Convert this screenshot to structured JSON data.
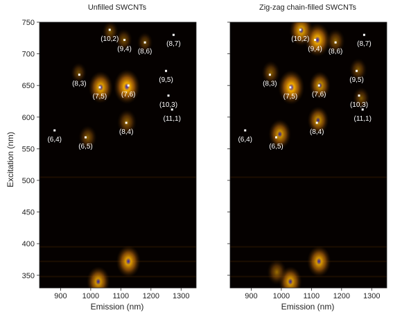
{
  "figure": {
    "ylabel": "Excitation (nm)"
  },
  "chart_data": [
    {
      "type": "heatmap",
      "title": "Unfilled SWCNTs",
      "xlabel": "Emission (nm)",
      "ylabel": "Excitation (nm)",
      "xlim": [
        830,
        1350
      ],
      "ylim": [
        330,
        750
      ],
      "x_ticks": [
        900,
        1000,
        1100,
        1200,
        1300
      ],
      "y_ticks": [
        350,
        400,
        450,
        500,
        550,
        600,
        650,
        700,
        750
      ],
      "show_y_tick_labels": true,
      "chiralities": [
        {
          "label": "(6,4)",
          "emission": 880,
          "excitation": 579
        },
        {
          "label": "(6,5)",
          "emission": 983,
          "excitation": 568
        },
        {
          "label": "(8,3)",
          "emission": 962,
          "excitation": 667
        },
        {
          "label": "(7,5)",
          "emission": 1030,
          "excitation": 647
        },
        {
          "label": "(10,2)",
          "emission": 1063,
          "excitation": 738
        },
        {
          "label": "(9,4)",
          "emission": 1112,
          "excitation": 722
        },
        {
          "label": "(7,6)",
          "emission": 1125,
          "excitation": 650
        },
        {
          "label": "(8,4)",
          "emission": 1118,
          "excitation": 591
        },
        {
          "label": "(8,6)",
          "emission": 1180,
          "excitation": 718
        },
        {
          "label": "(8,7)",
          "emission": 1275,
          "excitation": 730
        },
        {
          "label": "(9,5)",
          "emission": 1250,
          "excitation": 673
        },
        {
          "label": "(10,3)",
          "emission": 1258,
          "excitation": 634
        },
        {
          "label": "(11,1)",
          "emission": 1270,
          "excitation": 612
        }
      ],
      "peaks": [
        {
          "emission": 1120,
          "excitation": 648,
          "intensity": 1.0
        },
        {
          "emission": 1033,
          "excitation": 647,
          "intensity": 0.85
        },
        {
          "emission": 1125,
          "excitation": 372,
          "intensity": 0.85
        },
        {
          "emission": 1025,
          "excitation": 340,
          "intensity": 0.75
        },
        {
          "emission": 1120,
          "excitation": 592,
          "intensity": 0.45
        },
        {
          "emission": 990,
          "excitation": 568,
          "intensity": 0.35
        },
        {
          "emission": 1110,
          "excitation": 722,
          "intensity": 0.25
        },
        {
          "emission": 1065,
          "excitation": 735,
          "intensity": 0.2
        },
        {
          "emission": 960,
          "excitation": 670,
          "intensity": 0.15
        },
        {
          "emission": 1180,
          "excitation": 718,
          "intensity": 0.15
        }
      ]
    },
    {
      "type": "heatmap",
      "title": "Zig-zag chain-filled SWCNTs",
      "xlabel": "Emission (nm)",
      "ylabel": "",
      "xlim": [
        830,
        1350
      ],
      "ylim": [
        330,
        750
      ],
      "x_ticks": [
        900,
        1000,
        1100,
        1200,
        1300
      ],
      "y_ticks": [
        350,
        400,
        450,
        500,
        550,
        600,
        650,
        700,
        750
      ],
      "show_y_tick_labels": false,
      "chiralities": [
        {
          "label": "(6,4)",
          "emission": 880,
          "excitation": 579
        },
        {
          "label": "(6,5)",
          "emission": 983,
          "excitation": 568
        },
        {
          "label": "(8,3)",
          "emission": 962,
          "excitation": 667
        },
        {
          "label": "(7,5)",
          "emission": 1030,
          "excitation": 647
        },
        {
          "label": "(10,2)",
          "emission": 1063,
          "excitation": 738
        },
        {
          "label": "(9,4)",
          "emission": 1112,
          "excitation": 722
        },
        {
          "label": "(7,6)",
          "emission": 1125,
          "excitation": 650
        },
        {
          "label": "(8,4)",
          "emission": 1118,
          "excitation": 591
        },
        {
          "label": "(8,6)",
          "emission": 1180,
          "excitation": 718
        },
        {
          "label": "(8,7)",
          "emission": 1275,
          "excitation": 730
        },
        {
          "label": "(9,5)",
          "emission": 1250,
          "excitation": 673
        },
        {
          "label": "(10,3)",
          "emission": 1258,
          "excitation": 634
        },
        {
          "label": "(11,1)",
          "emission": 1270,
          "excitation": 612
        }
      ],
      "peaks": [
        {
          "emission": 1033,
          "excitation": 647,
          "intensity": 1.0
        },
        {
          "emission": 1120,
          "excitation": 722,
          "intensity": 0.95
        },
        {
          "emission": 1066,
          "excitation": 737,
          "intensity": 0.8
        },
        {
          "emission": 1125,
          "excitation": 372,
          "intensity": 0.8
        },
        {
          "emission": 1030,
          "excitation": 340,
          "intensity": 0.75
        },
        {
          "emission": 995,
          "excitation": 573,
          "intensity": 0.7
        },
        {
          "emission": 1122,
          "excitation": 595,
          "intensity": 0.6
        },
        {
          "emission": 1128,
          "excitation": 650,
          "intensity": 0.6
        },
        {
          "emission": 985,
          "excitation": 355,
          "intensity": 0.45
        },
        {
          "emission": 1180,
          "excitation": 720,
          "intensity": 0.4
        },
        {
          "emission": 965,
          "excitation": 670,
          "intensity": 0.35
        },
        {
          "emission": 1255,
          "excitation": 675,
          "intensity": 0.3
        },
        {
          "emission": 1265,
          "excitation": 630,
          "intensity": 0.25
        }
      ]
    }
  ],
  "colors": {
    "background": "#050100",
    "low": "#3a1e00",
    "mid": "#b8680a",
    "high": "#ffb400",
    "peak": "#2f1fc8",
    "marker": "#ffffff"
  }
}
